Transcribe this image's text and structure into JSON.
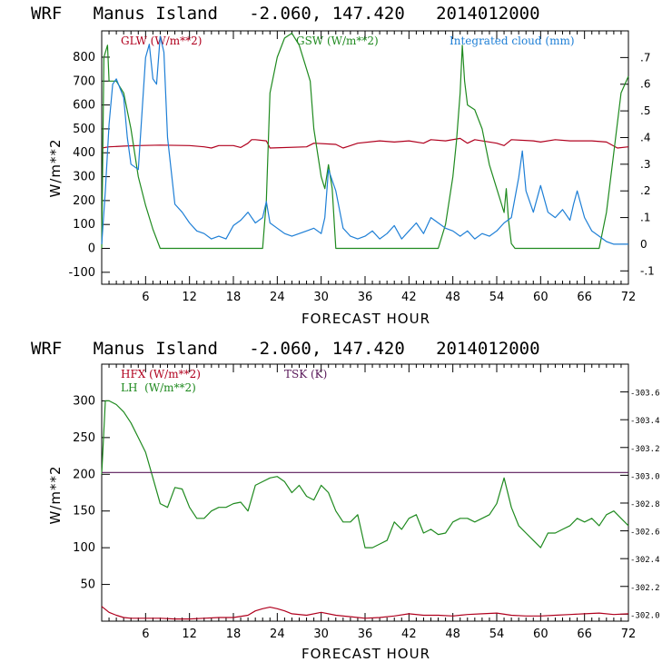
{
  "colors": {
    "red": "#b0001e",
    "green": "#1f8a1f",
    "blue": "#1e7fd6",
    "purple": "#5a1a5a",
    "frame": "#000000"
  },
  "chart_data": [
    {
      "type": "line",
      "title": "WRF   Manus Island   -2.060, 147.420   2014012000",
      "xlabel": "FORECAST HOUR",
      "ylabel": "W/m**2",
      "xlim": [
        0,
        72
      ],
      "ylim": [
        -150,
        910
      ],
      "y2lim": [
        -0.15,
        0.8
      ],
      "xticks": [
        "6",
        "12",
        "18",
        "24",
        "30",
        "36",
        "42",
        "48",
        "54",
        "60",
        "66",
        "72"
      ],
      "yticks": [
        "-100",
        "0",
        "100",
        "200",
        "300",
        "400",
        "500",
        "600",
        "700",
        "800"
      ],
      "y2ticks": [
        "-.1",
        "0",
        ".1",
        ".2",
        ".3",
        ".4",
        ".5",
        ".6",
        ".7"
      ],
      "legend": [
        "GLW (W/m**2)",
        "GSW (W/m**2)",
        "Integrated cloud (mm)"
      ],
      "series": [
        {
          "name": "GLW (W/m**2)",
          "axis": "left",
          "color": "#b0001e",
          "x": [
            0,
            1,
            3,
            5,
            8,
            12,
            14,
            15,
            16,
            18,
            19,
            20,
            20.5,
            21,
            22.5,
            23,
            28,
            29,
            32,
            33,
            35,
            38,
            40,
            42,
            44,
            45,
            47,
            49,
            50,
            51,
            54,
            55,
            56,
            59,
            60,
            62,
            64,
            67,
            69,
            70.5,
            72
          ],
          "y": [
            420,
            425,
            428,
            430,
            432,
            430,
            425,
            420,
            430,
            430,
            422,
            440,
            455,
            455,
            450,
            420,
            425,
            440,
            435,
            420,
            440,
            450,
            445,
            450,
            440,
            455,
            450,
            460,
            440,
            455,
            440,
            430,
            455,
            450,
            445,
            455,
            450,
            450,
            445,
            420,
            425
          ]
        },
        {
          "name": "GSW (W/m**2)",
          "axis": "left",
          "color": "#1f8a1f",
          "x": [
            0,
            0.3,
            0.8,
            1,
            2,
            3,
            4,
            5,
            6,
            7,
            8,
            9,
            10,
            14,
            18,
            21,
            22,
            22.5,
            23,
            24,
            25,
            26,
            27,
            28,
            28.5,
            29,
            30,
            30.5,
            31,
            31.5,
            32,
            46,
            47,
            48,
            48.5,
            49,
            49.3,
            49.6,
            50,
            51,
            52,
            53,
            54,
            55,
            55.3,
            55.6,
            56,
            56.5,
            68,
            69,
            70,
            71,
            72
          ],
          "y": [
            0,
            800,
            850,
            700,
            700,
            650,
            500,
            300,
            180,
            80,
            0,
            0,
            0,
            0,
            0,
            0,
            0,
            200,
            650,
            800,
            880,
            900,
            850,
            750,
            700,
            500,
            300,
            250,
            350,
            250,
            0,
            0,
            100,
            300,
            450,
            650,
            850,
            700,
            600,
            580,
            500,
            350,
            250,
            150,
            250,
            120,
            20,
            0,
            0,
            150,
            400,
            650,
            720
          ]
        },
        {
          "name": "Integrated cloud (mm)",
          "axis": "right",
          "color": "#1e7fd6",
          "x": [
            0,
            0.5,
            1,
            1.5,
            2,
            3,
            3.5,
            4,
            5,
            6,
            6.5,
            7,
            7.5,
            8,
            8.5,
            9,
            10,
            11,
            12,
            13,
            14,
            15,
            16,
            17,
            18,
            19,
            20,
            21,
            22,
            22.5,
            23,
            24,
            25,
            26,
            27,
            28,
            29,
            30,
            30.5,
            31,
            32,
            33,
            34,
            35,
            36,
            37,
            38,
            39,
            40,
            41,
            42,
            43,
            44,
            45,
            46,
            47,
            48,
            49,
            50,
            51,
            52,
            53,
            54,
            55,
            56,
            57,
            57.5,
            58,
            59,
            60,
            61,
            62,
            63,
            64,
            64.5,
            65,
            66,
            67,
            68,
            69,
            70,
            71,
            72
          ],
          "y": [
            0.0,
            0.2,
            0.45,
            0.6,
            0.62,
            0.55,
            0.4,
            0.3,
            0.28,
            0.7,
            0.75,
            0.62,
            0.6,
            0.78,
            0.72,
            0.4,
            0.15,
            0.12,
            0.08,
            0.05,
            0.04,
            0.02,
            0.03,
            0.02,
            0.07,
            0.09,
            0.12,
            0.08,
            0.1,
            0.16,
            0.08,
            0.06,
            0.04,
            0.03,
            0.04,
            0.05,
            0.06,
            0.04,
            0.1,
            0.28,
            0.2,
            0.06,
            0.03,
            0.02,
            0.03,
            0.05,
            0.02,
            0.04,
            0.07,
            0.02,
            0.05,
            0.08,
            0.04,
            0.1,
            0.08,
            0.06,
            0.05,
            0.03,
            0.05,
            0.02,
            0.04,
            0.03,
            0.05,
            0.08,
            0.1,
            0.25,
            0.35,
            0.2,
            0.12,
            0.22,
            0.12,
            0.1,
            0.13,
            0.09,
            0.15,
            0.2,
            0.1,
            0.05,
            0.03,
            0.01,
            0.0,
            0.0,
            0.0
          ]
        }
      ]
    },
    {
      "type": "line",
      "title": "WRF   Manus Island   -2.060, 147.420   2014012000",
      "xlabel": "FORECAST HOUR",
      "ylabel": "W/m**2",
      "xlim": [
        0,
        72
      ],
      "ylim": [
        0,
        350
      ],
      "y2lim": [
        301.95,
        303.8
      ],
      "xticks": [
        "6",
        "12",
        "18",
        "24",
        "30",
        "36",
        "42",
        "48",
        "54",
        "60",
        "66",
        "72"
      ],
      "yticks": [
        "50",
        "100",
        "150",
        "200",
        "250",
        "300"
      ],
      "y2ticks": [
        "302.0",
        "302.2",
        "302.4",
        "302.6",
        "302.8",
        "303.0",
        "303.2",
        "303.4",
        "303.6"
      ],
      "legend": [
        "HFX (W/m**2)",
        "LH  (W/m**2)",
        "TSK (K)"
      ],
      "series": [
        {
          "name": "HFX (W/m**2)",
          "axis": "left",
          "color": "#b0001e",
          "x": [
            0,
            1,
            2,
            3,
            4,
            6,
            8,
            10,
            12,
            14,
            16,
            18,
            20,
            21,
            22,
            23,
            24,
            25,
            26,
            28,
            30,
            32,
            34,
            36,
            38,
            40,
            42,
            44,
            46,
            48,
            50,
            52,
            54,
            56,
            58,
            60,
            62,
            64,
            66,
            68,
            70,
            72
          ],
          "y": [
            20,
            12,
            8,
            5,
            4,
            4,
            4,
            3,
            3,
            4,
            5,
            5,
            8,
            14,
            17,
            19,
            17,
            14,
            10,
            8,
            12,
            8,
            6,
            4,
            5,
            7,
            10,
            8,
            8,
            7,
            9,
            10,
            11,
            8,
            7,
            7,
            8,
            9,
            10,
            11,
            9,
            10
          ]
        },
        {
          "name": "LH  (W/m**2)",
          "axis": "left",
          "color": "#1f8a1f",
          "x": [
            0,
            0.5,
            1,
            2,
            3,
            4,
            5,
            6,
            7,
            8,
            9,
            10,
            11,
            12,
            13,
            14,
            15,
            16,
            17,
            18,
            19,
            20,
            21,
            22,
            23,
            24,
            25,
            26,
            27,
            28,
            29,
            30,
            31,
            32,
            33,
            34,
            35,
            36,
            37,
            38,
            39,
            40,
            41,
            42,
            43,
            44,
            45,
            46,
            47,
            48,
            49,
            50,
            51,
            52,
            53,
            54,
            55,
            56,
            57,
            58,
            59,
            60,
            61,
            62,
            63,
            64,
            65,
            66,
            67,
            68,
            69,
            70,
            71,
            72
          ],
          "y": [
            200,
            300,
            300,
            295,
            285,
            270,
            250,
            230,
            195,
            160,
            155,
            182,
            180,
            155,
            140,
            140,
            150,
            155,
            155,
            160,
            162,
            150,
            185,
            190,
            195,
            197,
            190,
            175,
            185,
            170,
            165,
            185,
            175,
            150,
            135,
            135,
            145,
            100,
            100,
            105,
            110,
            135,
            125,
            140,
            145,
            120,
            125,
            118,
            120,
            135,
            140,
            140,
            135,
            140,
            145,
            160,
            195,
            155,
            130,
            120,
            110,
            100,
            120,
            120,
            125,
            130,
            140,
            135,
            140,
            130,
            145,
            150,
            140,
            130
          ]
        },
        {
          "name": "TSK (K)",
          "axis": "right",
          "color": "#5a1a5a",
          "x": [
            0,
            72
          ],
          "y": [
            303.02,
            303.02
          ]
        }
      ]
    }
  ]
}
